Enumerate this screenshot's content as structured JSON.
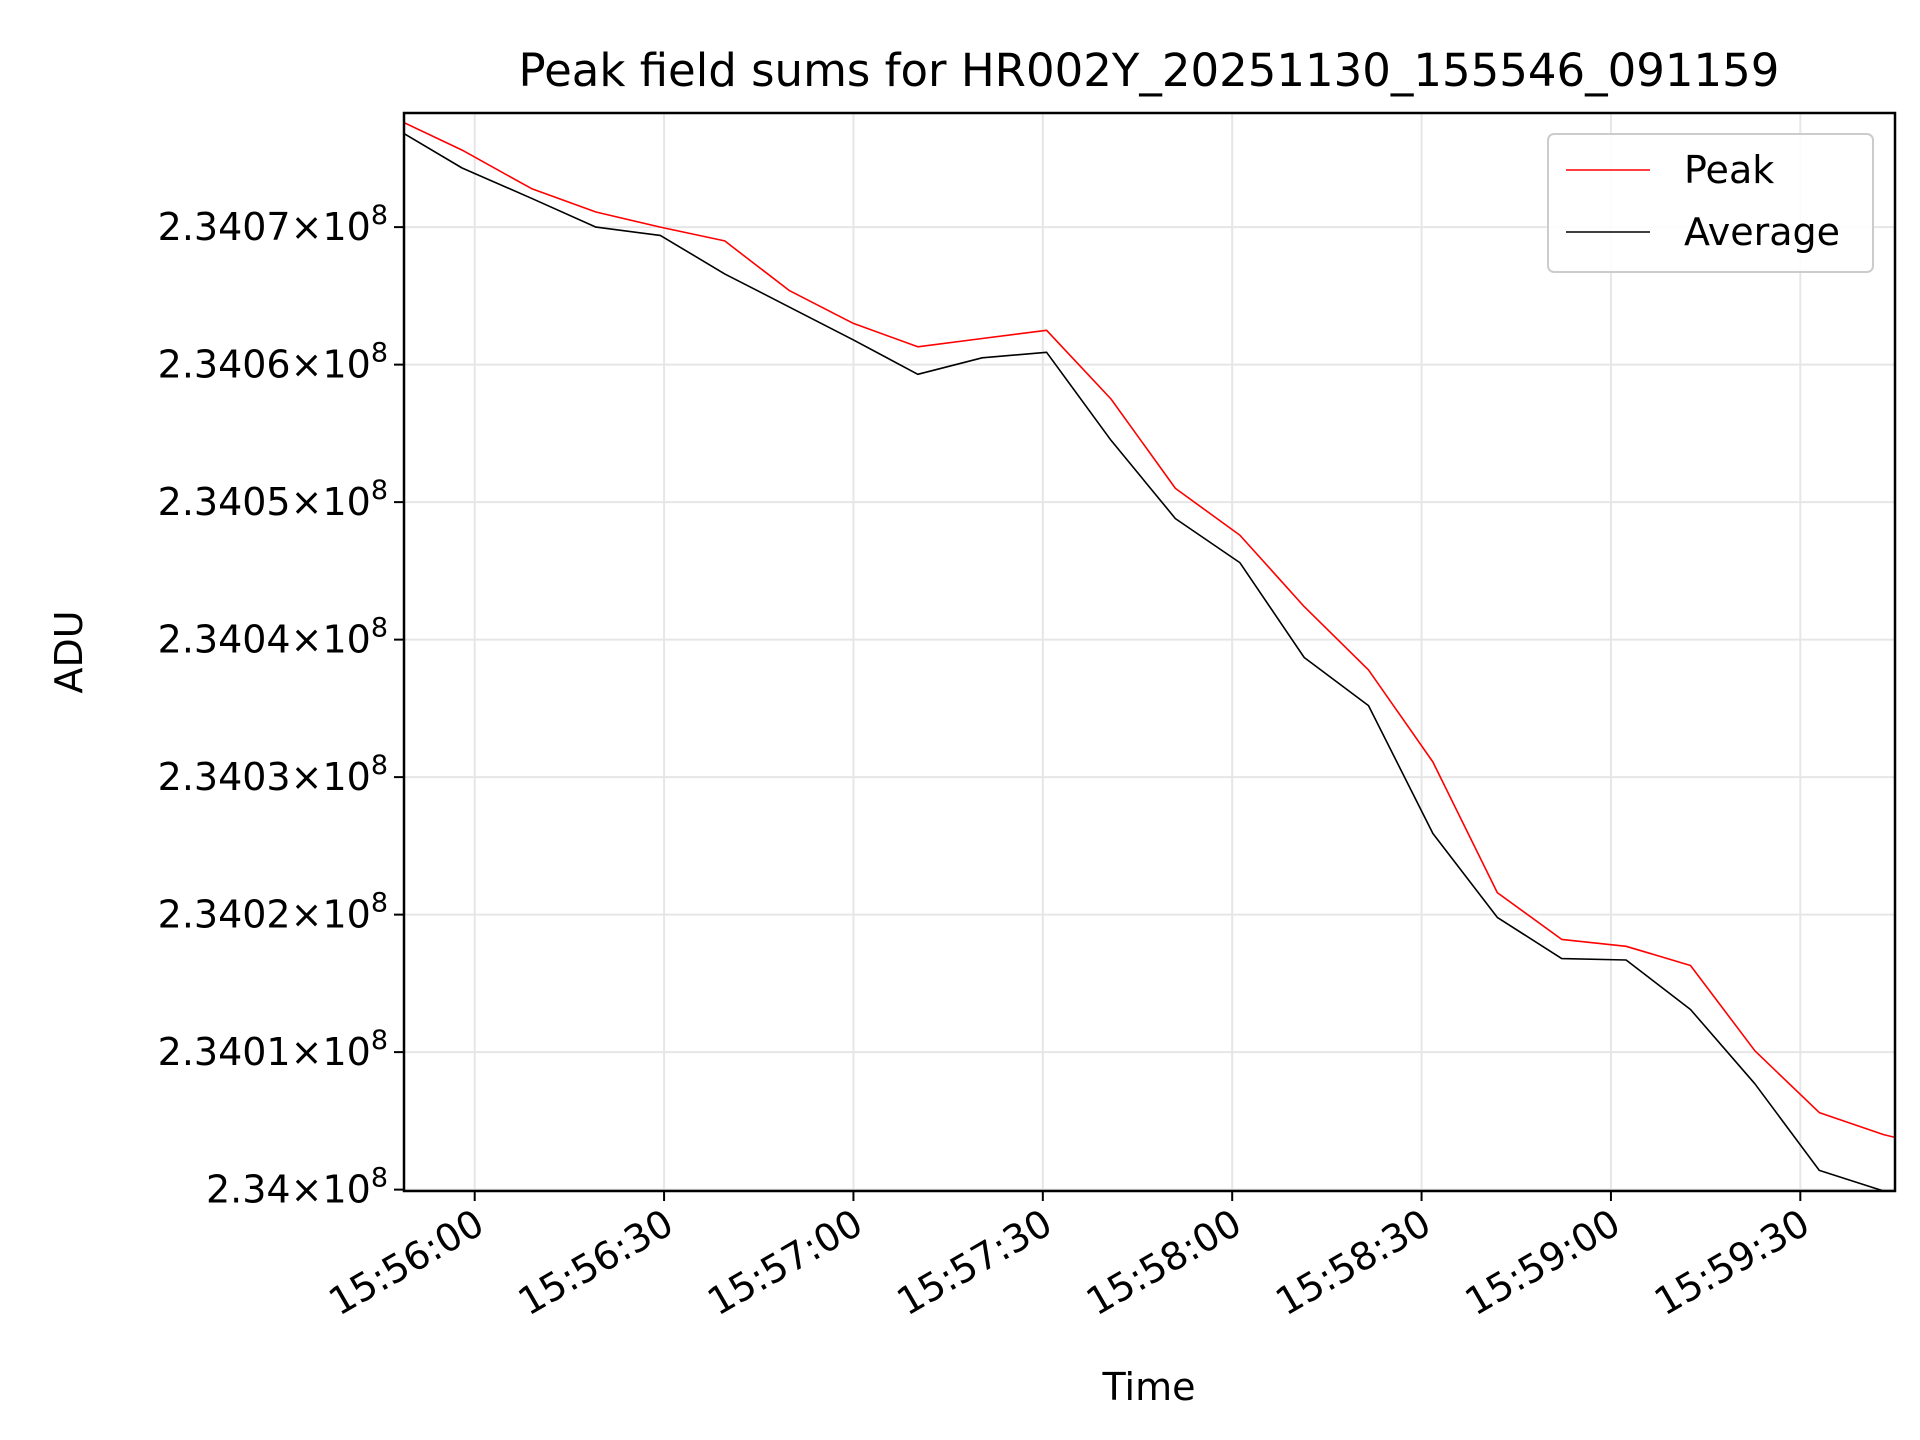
{
  "chart_data": {
    "type": "line",
    "title": "Peak field sums for HR002Y_20251130_155546_091159",
    "xlabel": "Time",
    "ylabel": "ADU",
    "x_unit": "seconds since 15:55:00",
    "xlim": [
      48.8,
      285
    ],
    "ylim": [
      233999900,
      234078300
    ],
    "x_ticks": [
      {
        "value": 60,
        "label": "15:56:00"
      },
      {
        "value": 90,
        "label": "15:56:30"
      },
      {
        "value": 120,
        "label": "15:57:00"
      },
      {
        "value": 150,
        "label": "15:57:30"
      },
      {
        "value": 180,
        "label": "15:58:00"
      },
      {
        "value": 210,
        "label": "15:58:30"
      },
      {
        "value": 240,
        "label": "15:59:00"
      },
      {
        "value": 270,
        "label": "15:59:30"
      }
    ],
    "y_ticks": [
      {
        "value": 234000000,
        "mantissa": "2.34",
        "exponent": "8"
      },
      {
        "value": 234010000,
        "mantissa": "2.3401",
        "exponent": "8"
      },
      {
        "value": 234020000,
        "mantissa": "2.3402",
        "exponent": "8"
      },
      {
        "value": 234030000,
        "mantissa": "2.3403",
        "exponent": "8"
      },
      {
        "value": 234040000,
        "mantissa": "2.3404",
        "exponent": "8"
      },
      {
        "value": 234050000,
        "mantissa": "2.3405",
        "exponent": "8"
      },
      {
        "value": 234060000,
        "mantissa": "2.3406",
        "exponent": "8"
      },
      {
        "value": 234070000,
        "mantissa": "2.3407",
        "exponent": "8"
      }
    ],
    "grid": true,
    "legend_position": "top-right",
    "series": [
      {
        "name": "Peak",
        "color": "#ff0000",
        "x": [
          48.8,
          58.0,
          69.0,
          79.2,
          89.4,
          99.6,
          109.8,
          120.0,
          130.2,
          140.4,
          150.6,
          160.8,
          171.0,
          181.2,
          191.4,
          201.6,
          211.8,
          222.0,
          232.2,
          242.4,
          252.6,
          262.8,
          273.0,
          283.2,
          285.0
        ],
        "values": [
          234077600,
          234075600,
          234072800,
          234071100,
          234070000,
          234069000,
          234065400,
          234063000,
          234061300,
          234061900,
          234062500,
          234057500,
          234051000,
          234047600,
          234042400,
          234037800,
          234031100,
          234021600,
          234018200,
          234017700,
          234016300,
          234010100,
          234005600,
          234004000,
          234003800
        ]
      },
      {
        "name": "Average",
        "color": "#000000",
        "x": [
          48.8,
          58.0,
          69.0,
          79.2,
          89.4,
          99.6,
          109.8,
          120.0,
          130.2,
          140.4,
          150.6,
          160.8,
          171.0,
          181.2,
          191.4,
          201.6,
          211.8,
          222.0,
          232.2,
          242.4,
          252.6,
          262.8,
          273.0,
          283.2,
          285.0
        ],
        "values": [
          234076800,
          234074300,
          234072100,
          234070000,
          234069400,
          234066600,
          234064200,
          234061800,
          234059300,
          234060500,
          234060900,
          234054500,
          234048800,
          234045600,
          234038700,
          234035200,
          234025900,
          234019800,
          234016800,
          234016700,
          234013100,
          234007700,
          234001400,
          233999900,
          233999900
        ]
      }
    ]
  }
}
